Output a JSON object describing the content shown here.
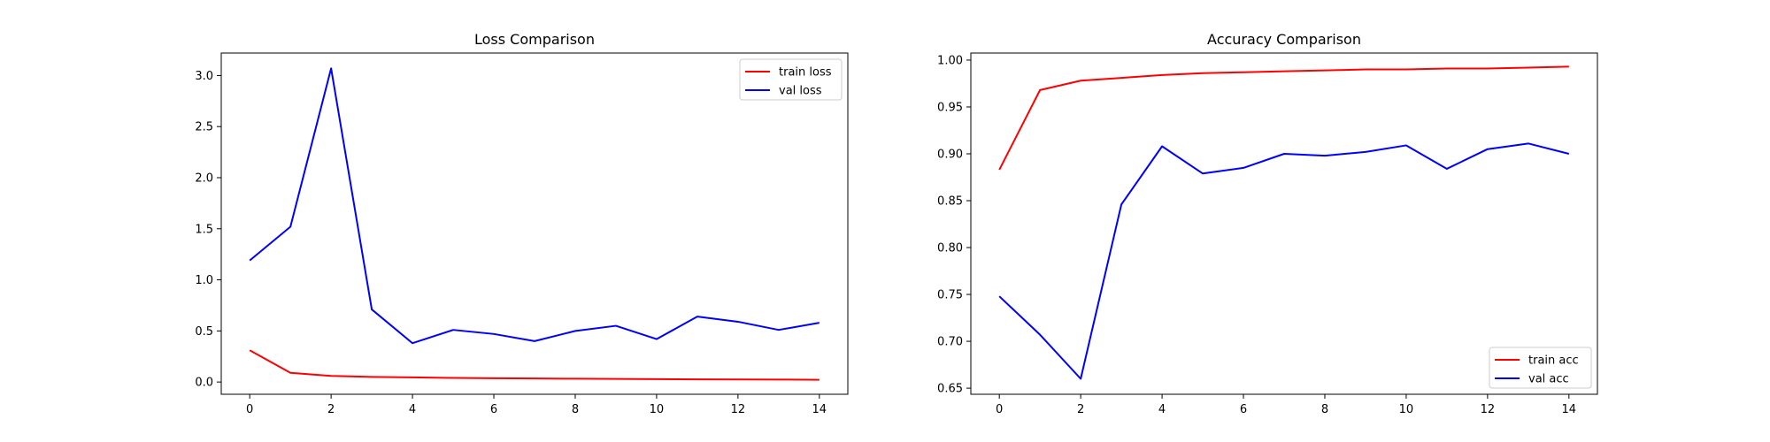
{
  "chart_data": [
    {
      "type": "line",
      "title": "Loss Comparison",
      "xlabel": "",
      "ylabel": "",
      "x": [
        0,
        1,
        2,
        3,
        4,
        5,
        6,
        7,
        8,
        9,
        10,
        11,
        12,
        13,
        14
      ],
      "xlim": [
        -0.7,
        14.7
      ],
      "ylim": [
        -0.12,
        3.22
      ],
      "xticks": [
        0,
        2,
        4,
        6,
        8,
        10,
        12,
        14
      ],
      "xtick_labels": [
        "0",
        "2",
        "4",
        "6",
        "8",
        "10",
        "12",
        "14"
      ],
      "yticks": [
        0.0,
        0.5,
        1.0,
        1.5,
        2.0,
        2.5,
        3.0
      ],
      "ytick_labels": [
        "0.0",
        "0.5",
        "1.0",
        "1.5",
        "2.0",
        "2.5",
        "3.0"
      ],
      "grid": false,
      "legend_position": "top-right",
      "series": [
        {
          "name": "train loss",
          "color": "#ff0000",
          "values": [
            0.31,
            0.09,
            0.06,
            0.05,
            0.045,
            0.04,
            0.037,
            0.035,
            0.032,
            0.03,
            0.028,
            0.026,
            0.025,
            0.024,
            0.022
          ]
        },
        {
          "name": "val loss",
          "color": "#0000ff",
          "values": [
            1.19,
            1.52,
            3.07,
            0.71,
            0.38,
            0.51,
            0.47,
            0.4,
            0.5,
            0.55,
            0.42,
            0.64,
            0.59,
            0.51,
            0.58
          ]
        }
      ]
    },
    {
      "type": "line",
      "title": "Accuracy Comparison",
      "xlabel": "",
      "ylabel": "",
      "x": [
        0,
        1,
        2,
        3,
        4,
        5,
        6,
        7,
        8,
        9,
        10,
        11,
        12,
        13,
        14
      ],
      "xlim": [
        -0.7,
        14.7
      ],
      "ylim": [
        0.6435,
        1.0075
      ],
      "xticks": [
        0,
        2,
        4,
        6,
        8,
        10,
        12,
        14
      ],
      "xtick_labels": [
        "0",
        "2",
        "4",
        "6",
        "8",
        "10",
        "12",
        "14"
      ],
      "yticks": [
        0.65,
        0.7,
        0.75,
        0.8,
        0.85,
        0.9,
        0.95,
        1.0
      ],
      "ytick_labels": [
        "0.65",
        "0.70",
        "0.75",
        "0.80",
        "0.85",
        "0.90",
        "0.95",
        "1.00"
      ],
      "grid": false,
      "legend_position": "bottom-right",
      "series": [
        {
          "name": "train acc",
          "color": "#ff0000",
          "values": [
            0.883,
            0.968,
            0.978,
            0.981,
            0.984,
            0.986,
            0.987,
            0.988,
            0.989,
            0.99,
            0.99,
            0.991,
            0.991,
            0.992,
            0.993
          ]
        },
        {
          "name": "val acc",
          "color": "#0000ff",
          "values": [
            0.748,
            0.707,
            0.66,
            0.846,
            0.908,
            0.879,
            0.885,
            0.9,
            0.898,
            0.902,
            0.909,
            0.884,
            0.905,
            0.911,
            0.9
          ]
        }
      ]
    }
  ]
}
